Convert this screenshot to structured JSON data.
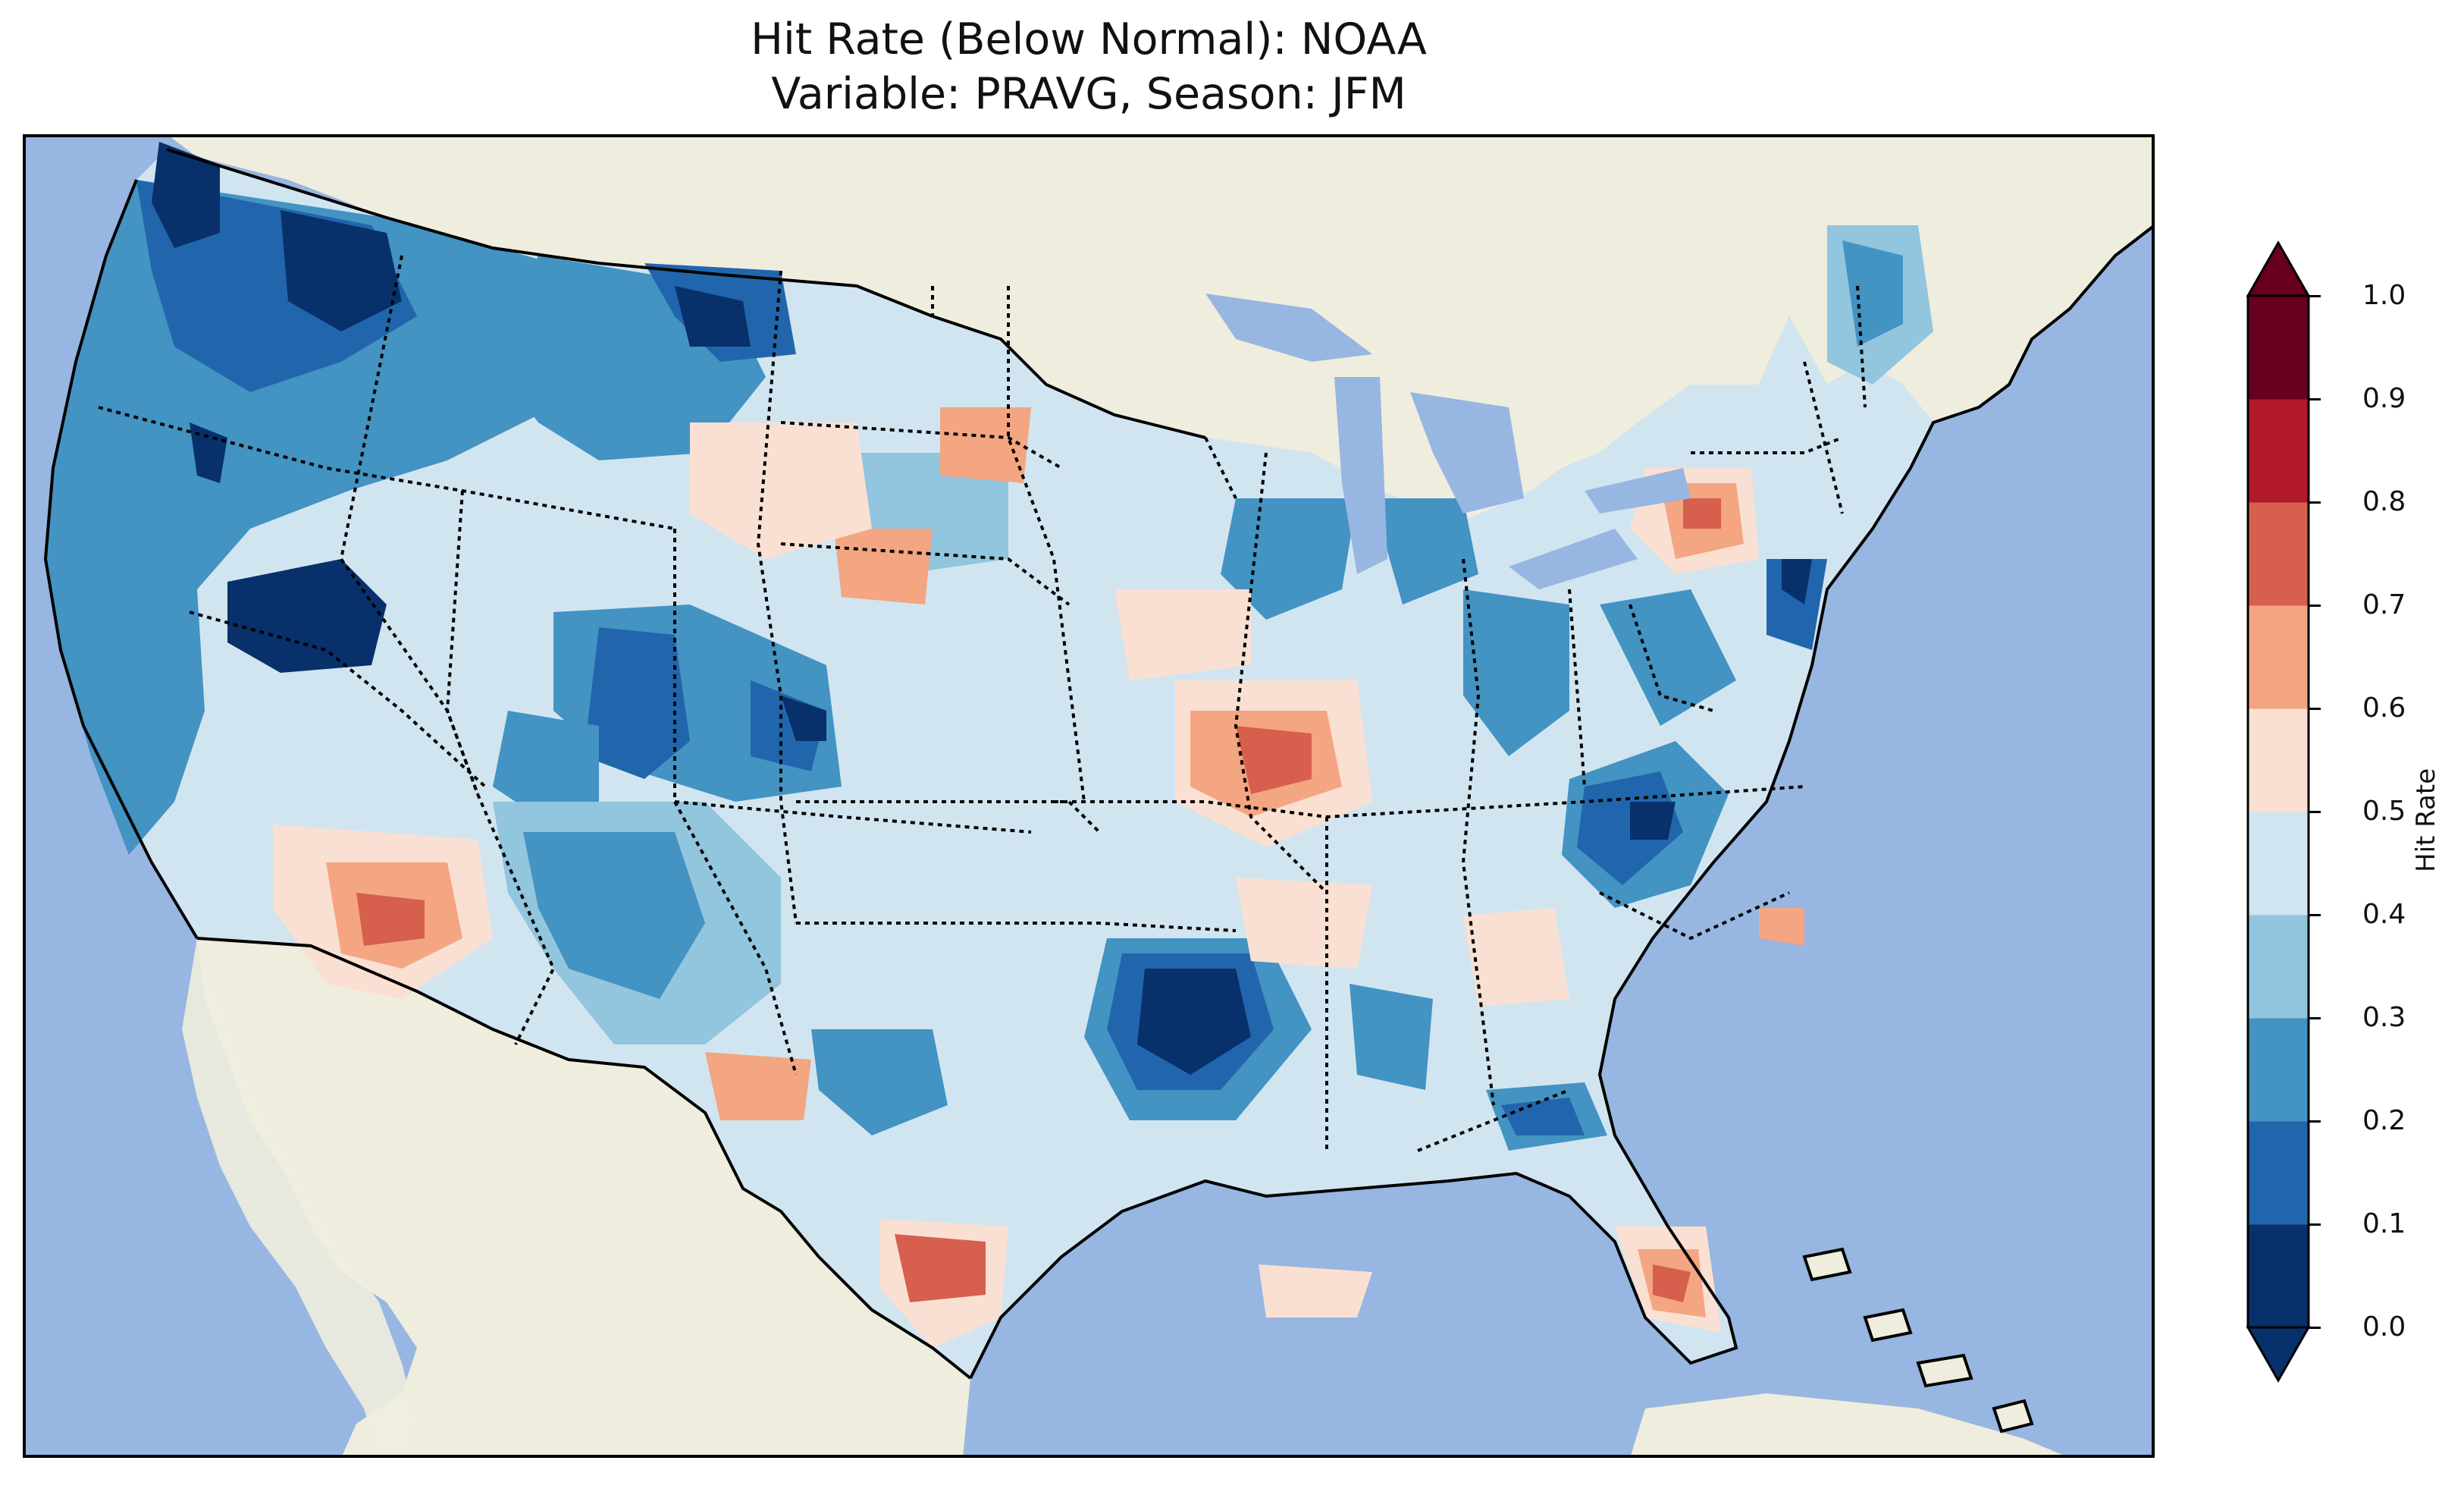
{
  "title": {
    "line1": "Hit Rate (Below Normal): NOAA",
    "line2": "Variable: PRAVG, Season: JFM"
  },
  "map": {
    "region": "Contiguous United States",
    "ocean_color": "#97b6e1",
    "land_color": "#efedde",
    "border_color": "#000000"
  },
  "colorbar": {
    "label": "Hit Rate",
    "ticks": [
      "0.0",
      "0.1",
      "0.2",
      "0.3",
      "0.4",
      "0.5",
      "0.6",
      "0.7",
      "0.8",
      "0.9",
      "1.0"
    ],
    "extend": "both",
    "colors": [
      "#08306b",
      "#2166ac",
      "#4393c3",
      "#92c5de",
      "#d1e5f0",
      "#fae0d3",
      "#f4a582",
      "#d6604d",
      "#b2182b",
      "#67001f"
    ]
  }
}
